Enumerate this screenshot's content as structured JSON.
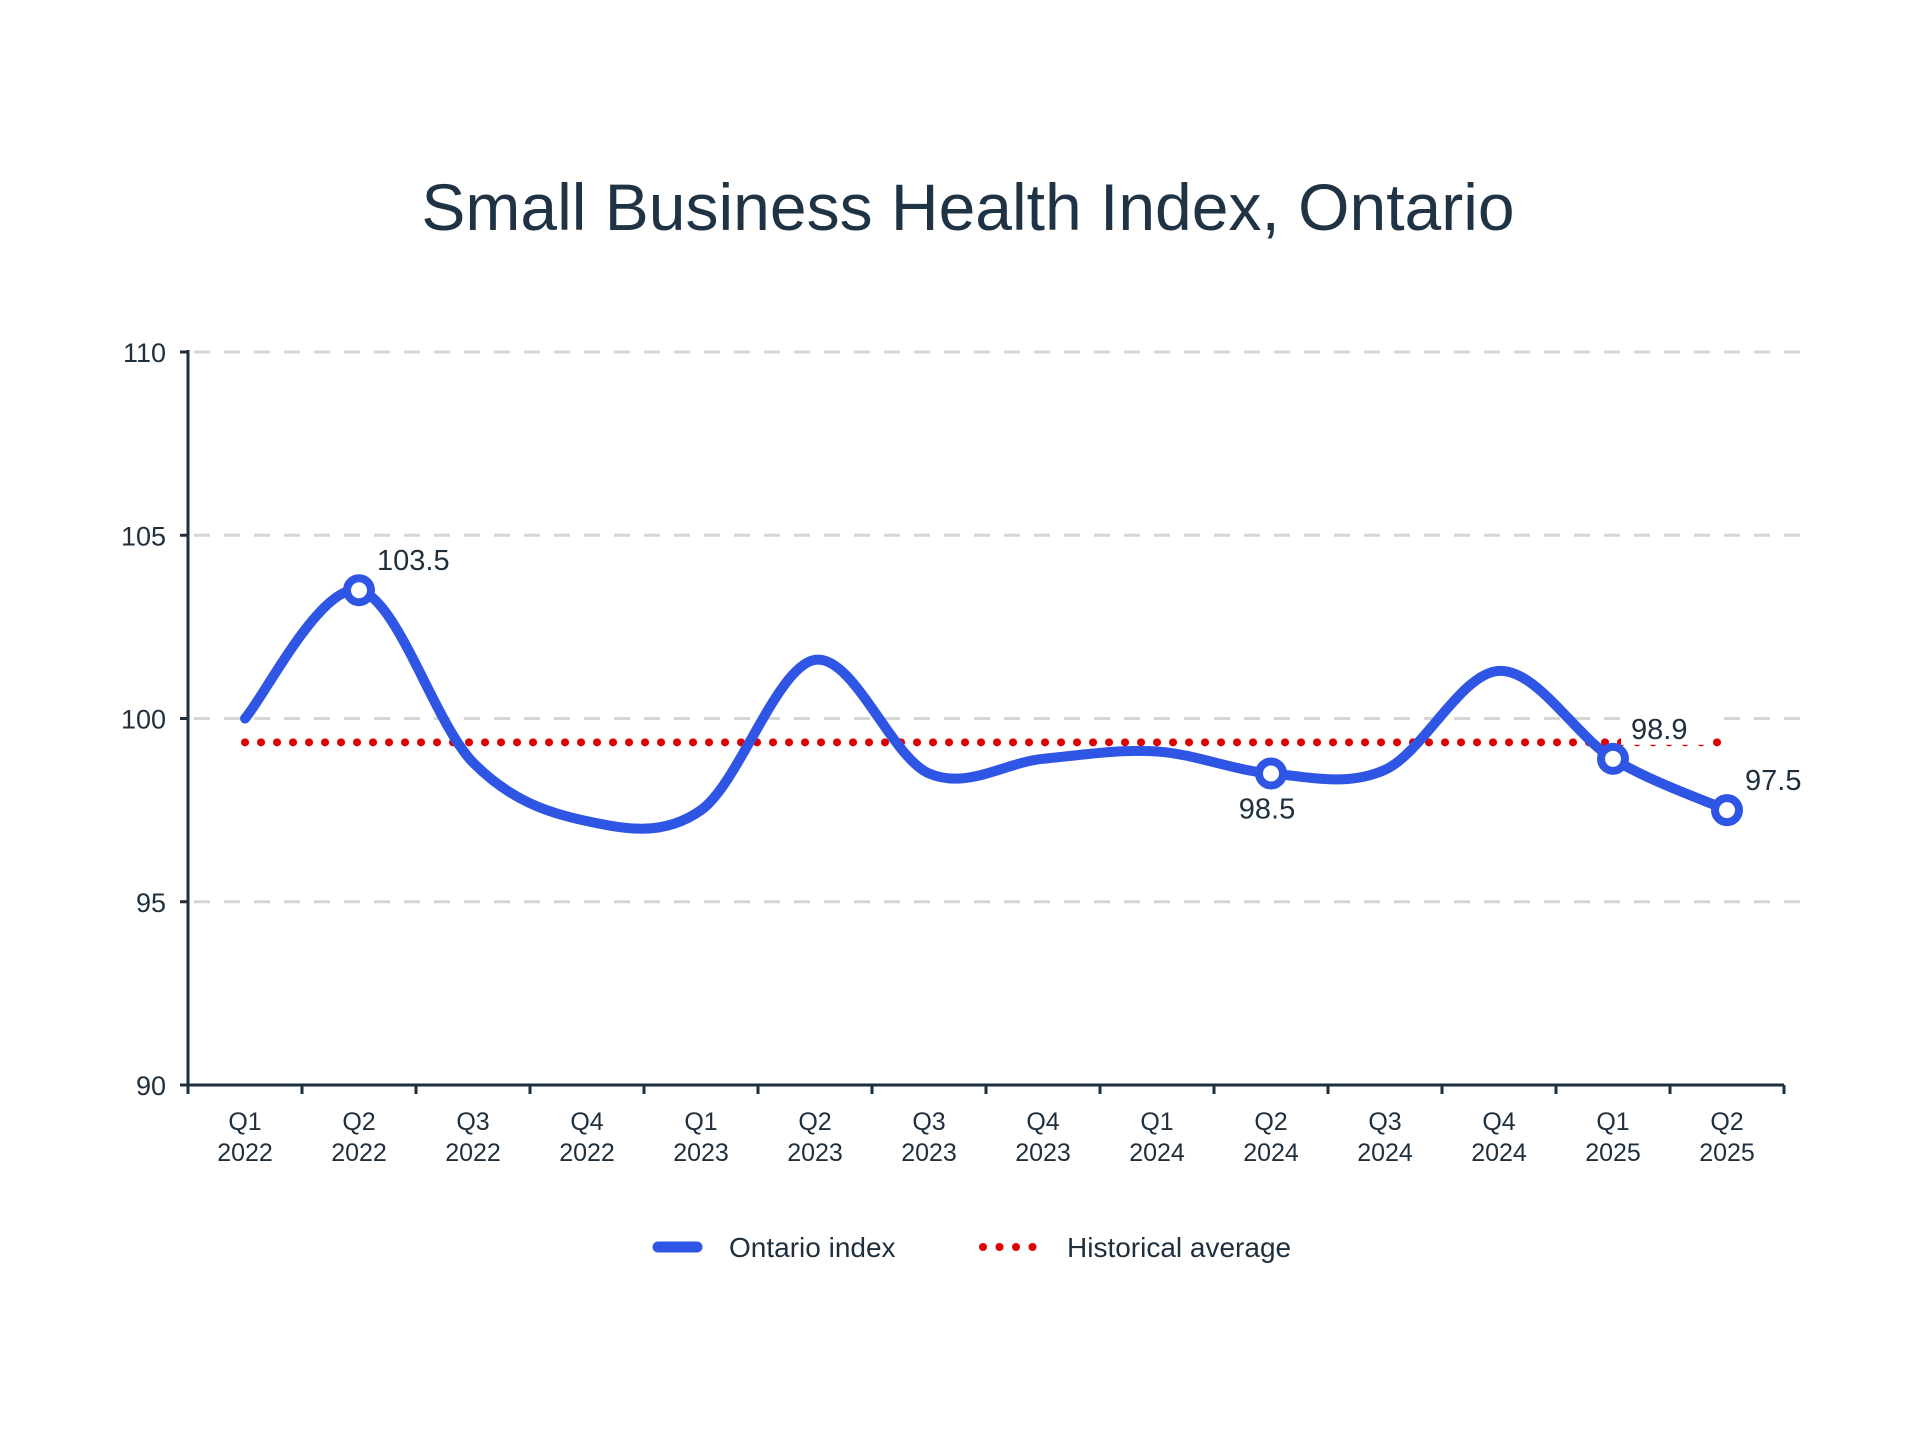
{
  "chart_data": {
    "type": "line",
    "title": "Small Business Health Index, Ontario",
    "xlabel": "",
    "ylabel": "",
    "ylim": [
      90,
      110
    ],
    "yticks": [
      90,
      95,
      100,
      105,
      110
    ],
    "grid": true,
    "categories": [
      [
        "Q1",
        "2022"
      ],
      [
        "Q2",
        "2022"
      ],
      [
        "Q3",
        "2022"
      ],
      [
        "Q4",
        "2022"
      ],
      [
        "Q1",
        "2023"
      ],
      [
        "Q2",
        "2023"
      ],
      [
        "Q3",
        "2023"
      ],
      [
        "Q4",
        "2023"
      ],
      [
        "Q1",
        "2024"
      ],
      [
        "Q2",
        "2024"
      ],
      [
        "Q3",
        "2024"
      ],
      [
        "Q4",
        "2024"
      ],
      [
        "Q1",
        "2025"
      ],
      [
        "Q2",
        "2025"
      ]
    ],
    "series": [
      {
        "name": "Ontario index",
        "color": "#2f55e4",
        "style": "solid-smooth",
        "values": [
          100.0,
          103.5,
          98.8,
          97.2,
          97.5,
          101.6,
          98.5,
          98.9,
          99.1,
          98.5,
          98.6,
          101.3,
          98.9,
          97.5
        ]
      },
      {
        "name": "Historical average",
        "color": "#e00000",
        "style": "dotted",
        "value": 99.35
      }
    ],
    "annotations": [
      {
        "index": 1,
        "text": "103.5",
        "position": "above-right"
      },
      {
        "index": 9,
        "text": "98.5",
        "position": "below"
      },
      {
        "index": 12,
        "text": "98.9",
        "position": "above-right"
      },
      {
        "index": 13,
        "text": "97.5",
        "position": "above-right"
      }
    ],
    "legend": {
      "placement": "bottom-center",
      "items": [
        "Ontario index",
        "Historical average"
      ]
    }
  }
}
